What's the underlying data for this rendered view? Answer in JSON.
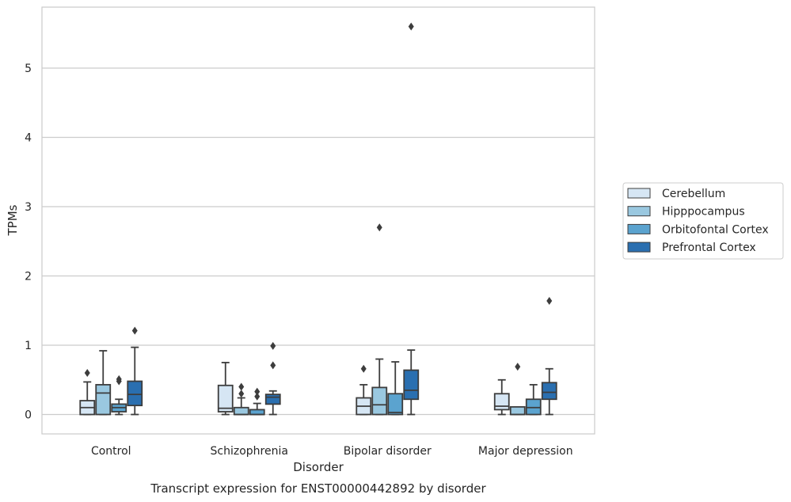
{
  "chart_data": {
    "type": "boxplot",
    "caption": "Transcript expression for ENST00000442892 by disorder",
    "xlabel": "Disorder",
    "ylabel": "TPMs",
    "ylim": [
      -0.28,
      5.88
    ],
    "yticks": [
      0,
      1,
      2,
      3,
      4,
      5
    ],
    "grid": "horizontal",
    "legend_position": "right",
    "categories": [
      "Control",
      "Schizophrenia",
      "Bipolar disorder",
      "Major depression"
    ],
    "series": [
      {
        "name": "Cerebellum",
        "color": "#d6e6f4",
        "boxes": [
          {
            "whislo": 0.0,
            "q1": 0.0,
            "med": 0.1,
            "q3": 0.2,
            "whishi": 0.47,
            "fliers": [
              0.6
            ]
          },
          {
            "whislo": 0.0,
            "q1": 0.04,
            "med": 0.09,
            "q3": 0.42,
            "whishi": 0.75,
            "fliers": []
          },
          {
            "whislo": 0.0,
            "q1": 0.0,
            "med": 0.12,
            "q3": 0.24,
            "whishi": 0.43,
            "fliers": [
              0.66
            ]
          },
          {
            "whislo": 0.0,
            "q1": 0.07,
            "med": 0.12,
            "q3": 0.3,
            "whishi": 0.5,
            "fliers": []
          }
        ]
      },
      {
        "name": "Hipppocampus",
        "color": "#9ac8e0",
        "boxes": [
          {
            "whislo": 0.0,
            "q1": 0.0,
            "med": 0.31,
            "q3": 0.43,
            "whishi": 0.92,
            "fliers": []
          },
          {
            "whislo": 0.0,
            "q1": 0.0,
            "med": 0.0,
            "q3": 0.1,
            "whishi": 0.24,
            "fliers": [
              0.3,
              0.4
            ]
          },
          {
            "whislo": 0.0,
            "q1": 0.0,
            "med": 0.14,
            "q3": 0.39,
            "whishi": 0.8,
            "fliers": [
              2.7
            ]
          },
          {
            "whislo": 0.0,
            "q1": 0.0,
            "med": 0.0,
            "q3": 0.11,
            "whishi": 0.11,
            "fliers": [
              0.69
            ]
          }
        ]
      },
      {
        "name": "Orbitofontal Cortex",
        "color": "#5ba3cf",
        "boxes": [
          {
            "whislo": 0.0,
            "q1": 0.04,
            "med": 0.1,
            "q3": 0.15,
            "whishi": 0.22,
            "fliers": [
              0.48,
              0.51
            ]
          },
          {
            "whislo": 0.0,
            "q1": 0.0,
            "med": 0.0,
            "q3": 0.07,
            "whishi": 0.16,
            "fliers": [
              0.26,
              0.33
            ]
          },
          {
            "whislo": 0.0,
            "q1": 0.0,
            "med": 0.03,
            "q3": 0.3,
            "whishi": 0.76,
            "fliers": []
          },
          {
            "whislo": 0.0,
            "q1": 0.0,
            "med": 0.1,
            "q3": 0.22,
            "whishi": 0.43,
            "fliers": []
          }
        ]
      },
      {
        "name": "Prefrontal Cortex",
        "color": "#2a6fb0",
        "boxes": [
          {
            "whislo": 0.0,
            "q1": 0.13,
            "med": 0.29,
            "q3": 0.48,
            "whishi": 0.97,
            "fliers": [
              1.21
            ]
          },
          {
            "whislo": 0.0,
            "q1": 0.15,
            "med": 0.25,
            "q3": 0.29,
            "whishi": 0.34,
            "fliers": [
              0.71,
              0.99
            ]
          },
          {
            "whislo": 0.0,
            "q1": 0.22,
            "med": 0.35,
            "q3": 0.64,
            "whishi": 0.93,
            "fliers": [
              5.6
            ]
          },
          {
            "whislo": 0.0,
            "q1": 0.22,
            "med": 0.32,
            "q3": 0.46,
            "whishi": 0.66,
            "fliers": [
              1.64
            ]
          }
        ]
      }
    ]
  }
}
